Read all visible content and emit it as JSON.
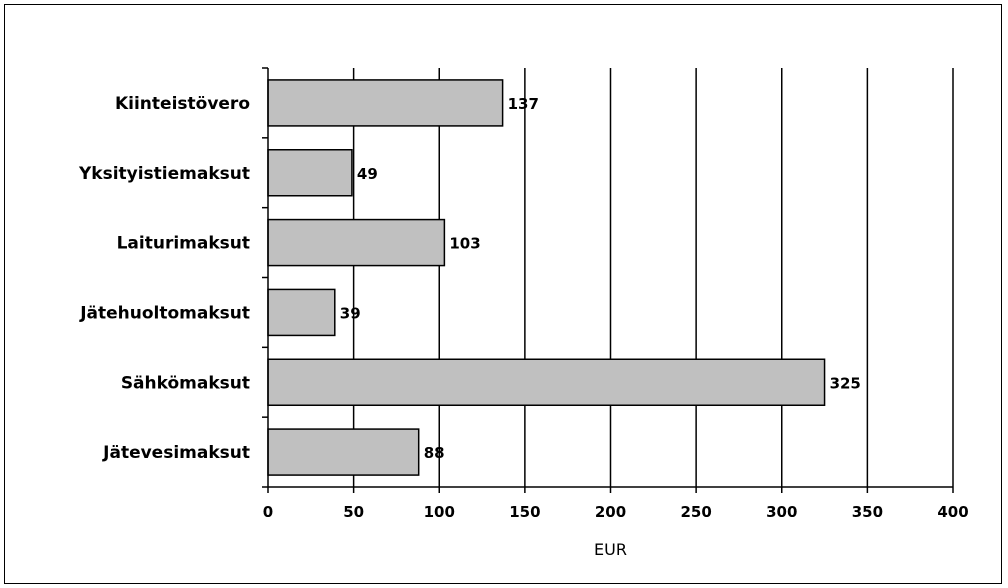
{
  "chart_data": {
    "type": "bar",
    "orientation": "horizontal",
    "categories": [
      "Kiinteistövero",
      "Yksityistiemaksut",
      "Laiturimaksut",
      "Jätehuoltomaksut",
      "Sähkömaksut",
      "Jätevesimaksut"
    ],
    "values": [
      137,
      49,
      103,
      39,
      325,
      88
    ],
    "data_labels": [
      "137",
      "49",
      "103",
      "39",
      "325",
      "88"
    ],
    "xlabel": "EUR",
    "ylabel": "",
    "xlim": [
      0,
      400
    ],
    "xticks": [
      "0",
      "50",
      "100",
      "150",
      "200",
      "250",
      "300",
      "350",
      "400"
    ],
    "xtick_values": [
      0,
      50,
      100,
      150,
      200,
      250,
      300,
      350,
      400
    ],
    "grid": "vertical",
    "bar_color": "#c0c0c0",
    "legend": "none"
  }
}
